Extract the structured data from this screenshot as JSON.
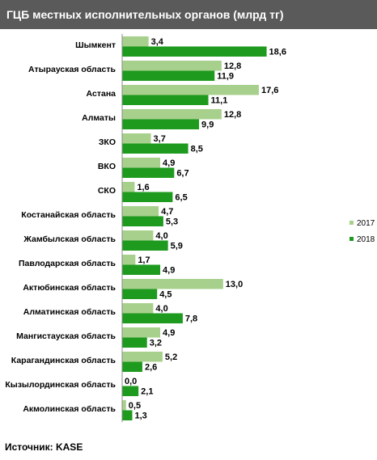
{
  "header": {
    "title": "ГЦБ местных исполнительных органов (млрд  тг)"
  },
  "footer": {
    "source": "Источник:  KASE"
  },
  "colors": {
    "s2017": "#a8d08d",
    "s2018": "#1e9a1e",
    "axis": "#888888",
    "title_bg": "#5a5a5a"
  },
  "chart_data": {
    "type": "bar",
    "orientation": "horizontal",
    "title": "ГЦБ местных исполнительных органов (млрд  тг)",
    "categories": [
      "Шымкент",
      "Атырауская область",
      "Астана",
      "Алматы",
      "ЗКО",
      "ВКО",
      "СКО",
      "Костанайская область",
      "Жамбылская область",
      "Павлодарская область",
      "Актюбинская область",
      "Алматинская область",
      "Мангистауская область",
      "Карагандинская область",
      "Кызылординская область",
      "Акмолинская область"
    ],
    "series": [
      {
        "name": "2017",
        "values": [
          3.4,
          12.8,
          17.6,
          12.8,
          3.7,
          4.9,
          1.6,
          4.7,
          4.0,
          1.7,
          13.0,
          4.0,
          4.9,
          5.2,
          0.0,
          0.5
        ],
        "labels": [
          "3,4",
          "12,8",
          "17,6",
          "12,8",
          "3,7",
          "4,9",
          "1,6",
          "4,7",
          "4,0",
          "1,7",
          "13,0",
          "4,0",
          "4,9",
          "5,2",
          "0,0",
          "0,5"
        ]
      },
      {
        "name": "2018",
        "values": [
          18.6,
          11.9,
          11.1,
          9.9,
          8.5,
          6.7,
          6.5,
          5.3,
          5.9,
          4.9,
          4.5,
          7.8,
          3.2,
          2.6,
          2.1,
          1.3
        ],
        "labels": [
          "18,6",
          "11,9",
          "11,1",
          "9,9",
          "8,5",
          "6,7",
          "6,5",
          "5,3",
          "5,9",
          "4,9",
          "4,5",
          "7,8",
          "3,2",
          "2,6",
          "2,1",
          "1,3"
        ]
      }
    ],
    "xlim": [
      0,
      20
    ],
    "grid": false,
    "legend_position": "right"
  }
}
